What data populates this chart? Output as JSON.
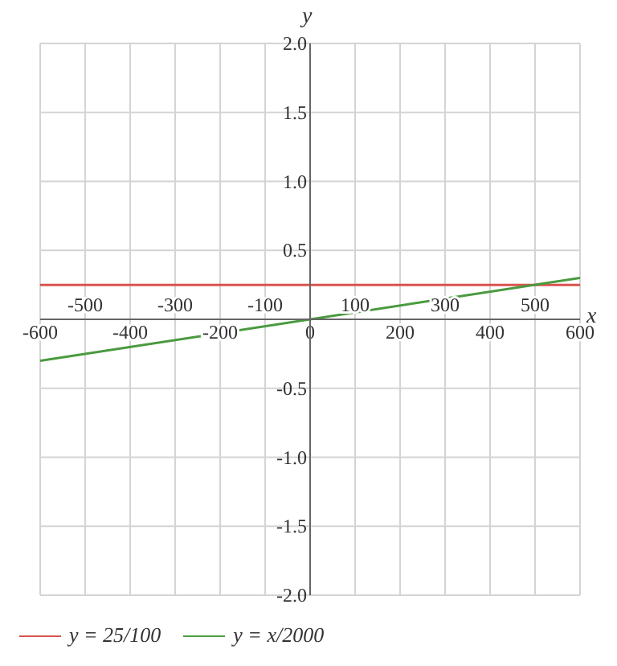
{
  "chart_data": {
    "type": "line",
    "x": [
      -600,
      600
    ],
    "series": [
      {
        "name": "y = 25/100",
        "color": "#d9534f",
        "values": [
          0.25,
          0.25
        ]
      },
      {
        "name": "y = x/2000",
        "color": "#4a9a3f",
        "values": [
          -0.3,
          0.3
        ]
      }
    ],
    "xlabel": "x",
    "ylabel": "y",
    "xlim": [
      -600,
      600
    ],
    "xticks": [
      -600,
      {
        "value": -500,
        "label": null
      },
      -400,
      {
        "value": -300,
        "label": null
      },
      -200,
      {
        "value": -100,
        "label": null
      },
      {
        "value": 0,
        "label": "0"
      },
      {
        "value": 100,
        "label": null
      },
      200,
      {
        "value": 300,
        "label": null
      },
      400,
      {
        "value": 500,
        "label": null
      },
      600
    ],
    "x2lim": [
      -600,
      600
    ],
    "x2ticks": [
      -500,
      -300,
      -100,
      100,
      300,
      500
    ],
    "ylim": [
      -2,
      2
    ],
    "yticks": [
      {
        "value": -2,
        "label": "-2.0"
      },
      -1.5,
      {
        "value": -1,
        "label": "-1.0"
      },
      -0.5,
      {
        "value": 0,
        "label": null
      },
      0.5,
      {
        "value": 1,
        "label": "1.0"
      },
      1.5,
      {
        "value": 2,
        "label": "2.0"
      }
    ],
    "grid": true,
    "legend": "bottom left"
  }
}
